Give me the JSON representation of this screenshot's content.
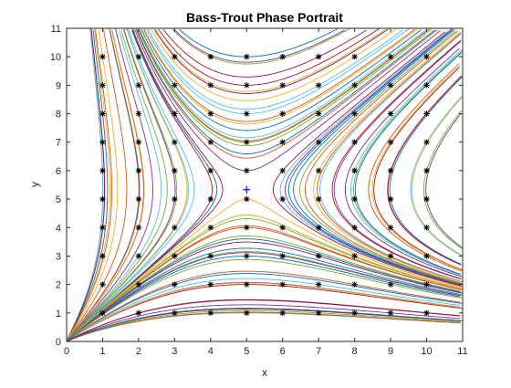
{
  "chart_data": {
    "type": "line",
    "title": "Bass-Trout Phase Portrait",
    "xlabel": "x",
    "ylabel": "y",
    "xlim": [
      0,
      11
    ],
    "ylim": [
      0,
      11
    ],
    "xticks": [
      "0",
      "1",
      "2",
      "3",
      "4",
      "5",
      "6",
      "7",
      "8",
      "9",
      "10",
      "11"
    ],
    "yticks": [
      "0",
      "1",
      "2",
      "3",
      "4",
      "5",
      "6",
      "7",
      "8",
      "9",
      "10",
      "11"
    ],
    "grid": false,
    "legend": "none",
    "initial_points": {
      "x": [
        1,
        2,
        3,
        4,
        5,
        6,
        7,
        8,
        9,
        10
      ],
      "y": [
        1,
        2,
        3,
        4,
        5,
        6,
        7,
        8,
        9,
        10
      ],
      "marker": "*",
      "color": "#000000"
    },
    "equilibrium": {
      "x": 5,
      "y": 5.33,
      "marker": "+",
      "color": "#0000ff"
    },
    "line_colors": [
      "#0072BD",
      "#D95319",
      "#EDB120",
      "#7E2F8E",
      "#77AC30",
      "#4DBEEE",
      "#A2142F"
    ]
  }
}
